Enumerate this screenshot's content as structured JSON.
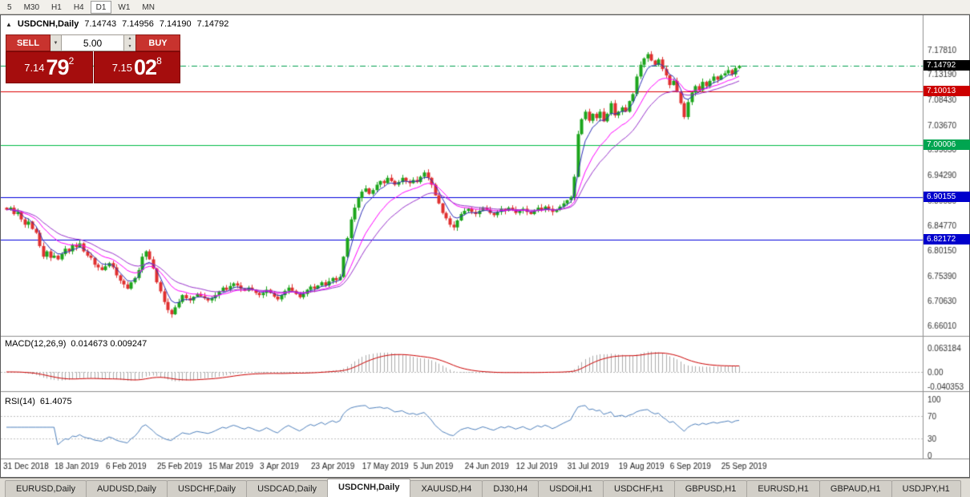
{
  "toolbar": {
    "timeframes": [
      {
        "label": "5",
        "active": false
      },
      {
        "label": "M30",
        "active": false
      },
      {
        "label": "H1",
        "active": false
      },
      {
        "label": "H4",
        "active": false
      },
      {
        "label": "D1",
        "active": true
      },
      {
        "label": "W1",
        "active": false
      },
      {
        "label": "MN",
        "active": false
      }
    ]
  },
  "chart": {
    "symbol_label": "USDCNH,Daily",
    "direction_icon": "▲",
    "ohlc": {
      "open": "7.14743",
      "high": "7.14956",
      "low": "7.14190",
      "close": "7.14792"
    }
  },
  "trade_panel": {
    "sell_label": "SELL",
    "buy_label": "BUY",
    "volume": "5.00",
    "sell_price": {
      "prefix": "7.14",
      "big": "79",
      "sup": "2"
    },
    "buy_price": {
      "prefix": "7.15",
      "big": "02",
      "sup": "8"
    }
  },
  "indicators": {
    "macd": {
      "label": "MACD(12,26,9)",
      "values": "0.014673 0.009247",
      "axis": [
        "0.063184",
        "0.00",
        "-0.040353"
      ]
    },
    "rsi": {
      "label": "RSI(14)",
      "value": "61.4075",
      "axis": [
        "100",
        "70",
        "30",
        "0"
      ]
    }
  },
  "price_axis": {
    "ticks": [
      "7.17810",
      "7.13190",
      "7.08430",
      "7.03670",
      "6.99050",
      "6.94290",
      "6.89530",
      "6.84770",
      "6.80150",
      "6.75390",
      "6.70630",
      "6.66010"
    ],
    "tags": [
      {
        "name": "current",
        "value": "7.14792",
        "bg": "#000000"
      },
      {
        "name": "level-red",
        "value": "7.10013",
        "bg": "#CC0000"
      },
      {
        "name": "level-green",
        "value": "7.00006",
        "bg": "#00A550"
      },
      {
        "name": "level-blue-upper",
        "value": "6.90155",
        "bg": "#0000CC"
      },
      {
        "name": "level-blue-lower",
        "value": "6.82172",
        "bg": "#0000CC"
      }
    ]
  },
  "time_axis": [
    "31 Dec 2018",
    "18 Jan 2019",
    "6 Feb 2019",
    "25 Feb 2019",
    "15 Mar 2019",
    "3 Apr 2019",
    "23 Apr 2019",
    "17 May 2019",
    "5 Jun 2019",
    "24 Jun 2019",
    "12 Jul 2019",
    "31 Jul 2019",
    "19 Aug 2019",
    "6 Sep 2019",
    "25 Sep 2019"
  ],
  "tabs": [
    {
      "label": "EURUSD,Daily",
      "active": false
    },
    {
      "label": "AUDUSD,Daily",
      "active": false
    },
    {
      "label": "USDCHF,Daily",
      "active": false
    },
    {
      "label": "USDCAD,Daily",
      "active": false
    },
    {
      "label": "USDCNH,Daily",
      "active": true
    },
    {
      "label": "XAUUSD,H4",
      "active": false
    },
    {
      "label": "DJ30,H4",
      "active": false
    },
    {
      "label": "USDOil,H1",
      "active": false
    },
    {
      "label": "USDCHF,H1",
      "active": false
    },
    {
      "label": "GBPUSD,H1",
      "active": false
    },
    {
      "label": "EURUSD,H1",
      "active": false
    },
    {
      "label": "GBPAUD,H1",
      "active": false
    },
    {
      "label": "USDJPY,H1",
      "active": false
    }
  ],
  "colors": {
    "up": "#1CA51C",
    "down": "#E03030",
    "ma_fast": "#2E2EB8",
    "ma_mid": "#FF00FF",
    "ma_slow": "#9933CC",
    "macd_hist": "#ABABAB",
    "macd_signal": "#CC0000",
    "rsi_line": "#4F81BD",
    "axis_text": "#333333",
    "current_line": "#00A050",
    "level_red": "#DD0000",
    "level_green": "#00BB44",
    "level_blue": "#0000DD"
  },
  "chart_data": {
    "type": "candlestick",
    "title": "USDCNH,Daily",
    "symbol": "USDCNH",
    "timeframe": "Daily",
    "x_labels": [
      "31 Dec 2018",
      "18 Jan 2019",
      "6 Feb 2019",
      "25 Feb 2019",
      "15 Mar 2019",
      "3 Apr 2019",
      "23 Apr 2019",
      "17 May 2019",
      "5 Jun 2019",
      "24 Jun 2019",
      "12 Jul 2019",
      "31 Jul 2019",
      "19 Aug 2019",
      "6 Sep 2019",
      "25 Sep 2019"
    ],
    "bars_per_label": 14,
    "price_range": [
      6.6459,
      7.2263
    ],
    "closes": [
      6.878,
      6.882,
      6.87,
      6.874,
      6.86,
      6.85,
      6.856,
      6.842,
      6.835,
      6.81,
      6.79,
      6.8,
      6.788,
      6.792,
      6.785,
      6.795,
      6.805,
      6.8,
      6.812,
      6.808,
      6.815,
      6.8,
      6.792,
      6.788,
      6.775,
      6.77,
      6.765,
      6.772,
      6.778,
      6.77,
      6.755,
      6.745,
      6.738,
      6.73,
      6.742,
      6.75,
      6.765,
      6.79,
      6.8,
      6.785,
      6.768,
      6.742,
      6.725,
      6.705,
      6.69,
      6.682,
      6.695,
      6.705,
      6.718,
      6.712,
      6.708,
      6.715,
      6.72,
      6.716,
      6.712,
      6.708,
      6.712,
      6.718,
      6.725,
      6.732,
      6.728,
      6.735,
      6.74,
      6.736,
      6.73,
      6.726,
      6.732,
      6.728,
      6.722,
      6.718,
      6.722,
      6.728,
      6.722,
      6.715,
      6.71,
      6.718,
      6.726,
      6.732,
      6.726,
      6.72,
      6.714,
      6.72,
      6.728,
      6.734,
      6.73,
      6.736,
      6.742,
      6.736,
      6.744,
      6.75,
      6.746,
      6.752,
      6.79,
      6.825,
      6.86,
      6.882,
      6.9,
      6.912,
      6.918,
      6.908,
      6.915,
      6.925,
      6.932,
      6.928,
      6.938,
      6.932,
      6.925,
      6.93,
      6.938,
      6.932,
      6.928,
      6.934,
      6.93,
      6.94,
      6.948,
      6.938,
      6.925,
      6.905,
      6.89,
      6.872,
      6.862,
      6.85,
      6.845,
      6.858,
      6.87,
      6.876,
      6.88,
      6.874,
      6.87,
      6.876,
      6.882,
      6.878,
      6.872,
      6.868,
      6.874,
      6.88,
      6.876,
      6.882,
      6.878,
      6.872,
      6.876,
      6.88,
      6.874,
      6.87,
      6.876,
      6.882,
      6.878,
      6.884,
      6.88,
      6.874,
      6.878,
      6.884,
      6.89,
      6.896,
      6.902,
      6.94,
      7.02,
      7.048,
      7.062,
      7.045,
      7.058,
      7.05,
      7.062,
      7.044,
      7.058,
      7.078,
      7.055,
      7.062,
      7.07,
      7.062,
      7.082,
      7.095,
      7.128,
      7.15,
      7.162,
      7.17,
      7.158,
      7.15,
      7.16,
      7.142,
      7.13,
      7.112,
      7.12,
      7.1,
      7.078,
      7.052,
      7.08,
      7.098,
      7.11,
      7.102,
      7.118,
      7.11,
      7.12,
      7.128,
      7.122,
      7.13,
      7.134,
      7.14,
      7.132,
      7.144,
      7.14792
    ],
    "last_bar": {
      "open": 7.14743,
      "high": 7.14956,
      "low": 7.1419,
      "close": 7.14792
    },
    "levels": [
      {
        "name": "current-price",
        "price": 7.14792,
        "style": "dashdot",
        "color": "#00A050"
      },
      {
        "name": "resistance-red",
        "price": 7.10013,
        "style": "solid",
        "color": "#DD0000"
      },
      {
        "name": "level-green",
        "price": 7.00006,
        "style": "solid",
        "color": "#00BB44"
      },
      {
        "name": "support-blue-upper",
        "price": 6.90155,
        "style": "solid",
        "color": "#0000DD"
      },
      {
        "name": "support-blue-lower",
        "price": 6.82172,
        "style": "solid",
        "color": "#0000DD"
      }
    ],
    "moving_averages": [
      {
        "period": 5,
        "color": "#2E2EB8"
      },
      {
        "period": 13,
        "color": "#FF00FF"
      },
      {
        "period": 21,
        "color": "#9933CC"
      }
    ],
    "macd": {
      "fast": 12,
      "slow": 26,
      "signal": 9,
      "current_macd": 0.014673,
      "current_signal": 0.009247,
      "axis_range": [
        -0.040353,
        0.063184
      ]
    },
    "rsi": {
      "period": 14,
      "current": 61.4075,
      "levels": [
        70,
        30
      ],
      "axis_range": [
        0,
        100
      ]
    }
  }
}
